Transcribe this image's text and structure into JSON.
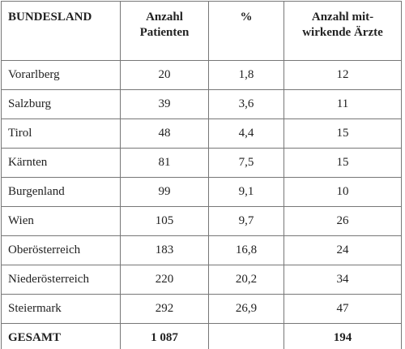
{
  "table": {
    "header": [
      [
        "BUNDESLAND"
      ],
      [
        "Anzahl",
        "Patienten"
      ],
      [
        "%"
      ],
      [
        "Anzahl mit-",
        "wirkende Ärzte"
      ]
    ],
    "rows": [
      [
        "Vorarlberg",
        "20",
        "1,8",
        "12"
      ],
      [
        "Salzburg",
        "39",
        "3,6",
        "11"
      ],
      [
        "Tirol",
        "48",
        "4,4",
        "15"
      ],
      [
        "Kärnten",
        "81",
        "7,5",
        "15"
      ],
      [
        "Burgenland",
        "99",
        "9,1",
        "10"
      ],
      [
        "Wien",
        "105",
        "9,7",
        "26"
      ],
      [
        "Oberösterreich",
        "183",
        "16,8",
        "24"
      ],
      [
        "Niederösterreich",
        "220",
        "20,2",
        "34"
      ],
      [
        "Steiermark",
        "292",
        "26,9",
        "47"
      ]
    ],
    "total": {
      "label": "GESAMT",
      "patients": "1 087",
      "doctors": "194"
    }
  }
}
